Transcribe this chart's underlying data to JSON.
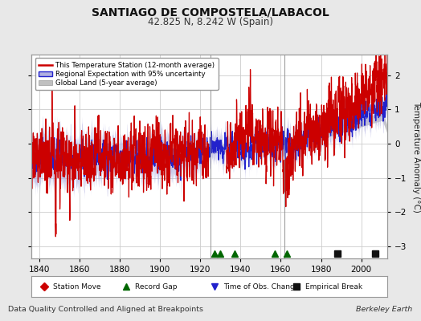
{
  "title": "SANTIAGO DE COMPOSTELA/LABACOL",
  "subtitle": "42.825 N, 8.242 W (Spain)",
  "ylabel": "Temperature Anomaly (°C)",
  "xlabel_note": "Data Quality Controlled and Aligned at Breakpoints",
  "credit": "Berkeley Earth",
  "xlim": [
    1836,
    2013
  ],
  "ylim": [
    -3.35,
    2.6
  ],
  "yticks": [
    -3,
    -2,
    -1,
    0,
    1,
    2
  ],
  "xticks": [
    1840,
    1860,
    1880,
    1900,
    1920,
    1940,
    1960,
    1980,
    2000
  ],
  "grid_color": "#cccccc",
  "bg_color": "#e8e8e8",
  "plot_bg_color": "#ffffff",
  "red_color": "#cc0000",
  "blue_color": "#2222cc",
  "blue_fill_color": "#b0b0e0",
  "grey_color": "#c0c0c0",
  "vertical_lines": [
    1925,
    1962
  ],
  "vertical_line_color": "#888888",
  "record_gap_years": [
    1927,
    1930,
    1937,
    1957,
    1963
  ],
  "empirical_break_years": [
    1988,
    2007
  ],
  "station_move_years": [],
  "time_obs_years": [],
  "red_segment1_end": 1925,
  "red_segment2_start": 1932,
  "red_segment2_end": 1962,
  "red_segment3_start": 1962
}
